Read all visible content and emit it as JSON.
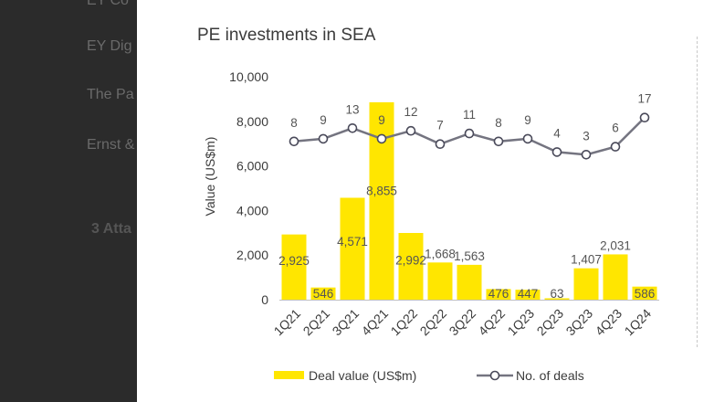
{
  "background": {
    "items": [
      "EY Co",
      "EY Dig",
      "The Pa",
      "Ernst &",
      "3 Atta"
    ]
  },
  "chart_data": {
    "type": "bar+line",
    "title": "PE investments in SEA",
    "ylabel": "Value (US$m)",
    "xlabel": "",
    "ylim": [
      0,
      10000
    ],
    "yticks": [
      0,
      2000,
      4000,
      6000,
      8000,
      10000
    ],
    "ytick_labels": [
      "0",
      "2,000",
      "4,000",
      "6,000",
      "8,000",
      "10,000"
    ],
    "categories": [
      "1Q21",
      "2Q21",
      "3Q21",
      "4Q21",
      "1Q22",
      "2Q22",
      "3Q22",
      "4Q22",
      "1Q23",
      "2Q23",
      "3Q23",
      "4Q23",
      "1Q24"
    ],
    "series": [
      {
        "name": "Deal value (US$m)",
        "kind": "bar",
        "color": "#FFE600",
        "values": [
          2925,
          546,
          4571,
          8855,
          2992,
          1668,
          1563,
          476,
          447,
          63,
          1407,
          2031,
          586
        ],
        "labels": [
          "2,925",
          "546",
          "4,571",
          "8,855",
          "2,992",
          "1,668",
          "1,563",
          "476",
          "447",
          "63",
          "1,407",
          "2,031",
          "586"
        ]
      },
      {
        "name": "No. of deals",
        "kind": "line",
        "color": "#747480",
        "values": [
          8,
          9,
          13,
          9,
          12,
          7,
          11,
          8,
          9,
          4,
          3,
          6,
          17
        ],
        "labels": [
          "8",
          "9",
          "13",
          "9",
          "12",
          "7",
          "11",
          "8",
          "9",
          "4",
          "3",
          "6",
          "17"
        ]
      }
    ],
    "legend": "bottom",
    "grid": false
  }
}
